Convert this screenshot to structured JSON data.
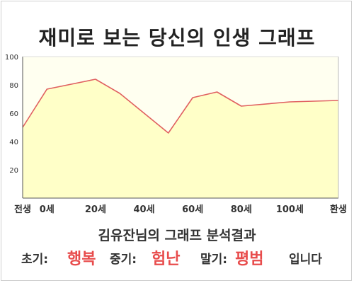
{
  "title": "재미로 보는 당신의 인생 그래프",
  "summary": "김유잔님의 그래프 분석결과",
  "result": {
    "early_label": "초기:",
    "early_value": "행복",
    "middle_label": "중기:",
    "middle_value": "험난",
    "late_label": "말기:",
    "late_value": "평범",
    "ending": "입니다"
  },
  "colors": {
    "line": "#e06060",
    "fill": "#ffffc8",
    "plot_bg": "#fffff0",
    "accent": "#e84c4c"
  },
  "chart_data": {
    "type": "area",
    "title": "재미로 보는 당신의 인생 그래프",
    "xlabel": "",
    "ylabel": "",
    "x_ticks": [
      {
        "x": -10,
        "label": "전생"
      },
      {
        "x": 0,
        "label": "0세"
      },
      {
        "x": 20,
        "label": "20세"
      },
      {
        "x": 40,
        "label": "40세"
      },
      {
        "x": 60,
        "label": "60세"
      },
      {
        "x": 80,
        "label": "80세"
      },
      {
        "x": 100,
        "label": "100세"
      },
      {
        "x": 120,
        "label": "환생"
      }
    ],
    "y_ticks": [
      20,
      40,
      60,
      80,
      100
    ],
    "xlim": [
      -10,
      120
    ],
    "ylim": [
      0,
      100
    ],
    "grid": false,
    "series": [
      {
        "x": [
          -10,
          0,
          20,
          30,
          50,
          60,
          70,
          80,
          100,
          120
        ],
        "y": [
          50,
          77,
          84,
          74,
          46,
          71,
          75,
          65,
          68,
          69
        ]
      }
    ]
  }
}
